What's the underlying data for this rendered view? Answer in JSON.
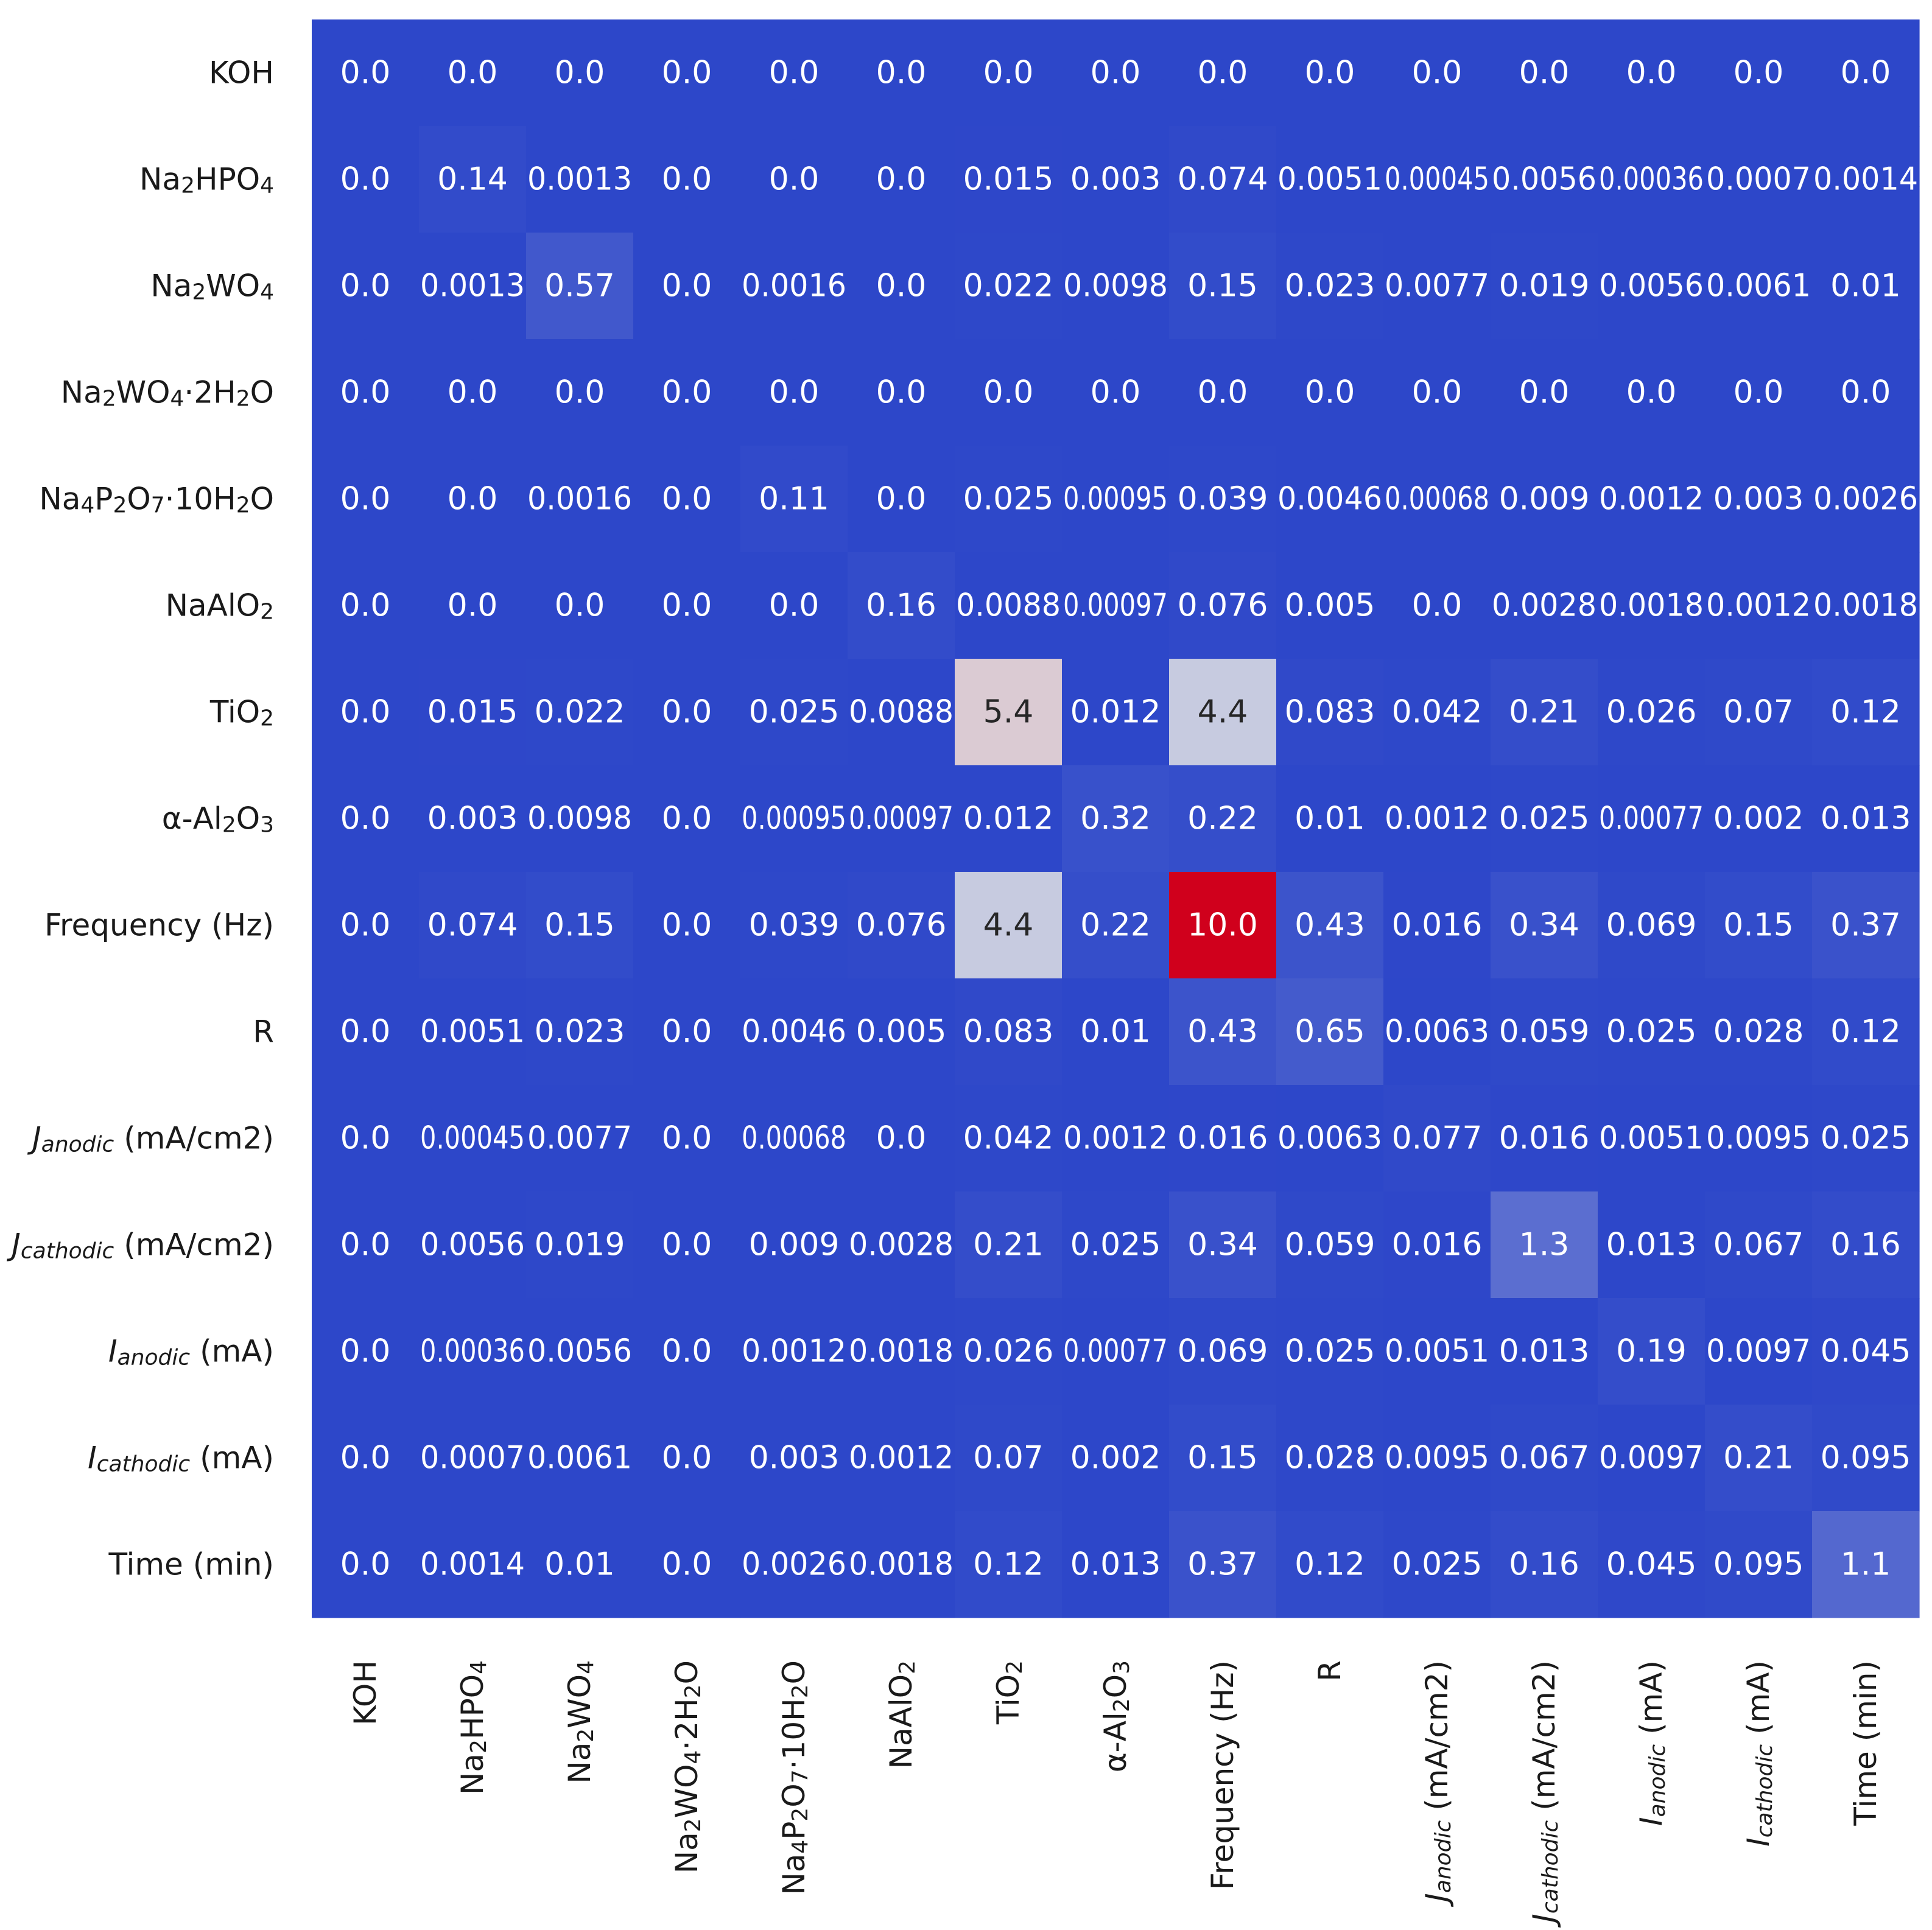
{
  "chart_data": {
    "type": "heatmap",
    "title": "",
    "xlabel": "",
    "ylabel": "",
    "labels": [
      "KOH",
      "Na₂HPO₄",
      "Na₂WO₄",
      "Na₂WO₄·2H₂O",
      "Na₄P₂O₇·10H₂O",
      "NaAlO₂",
      "TiO₂",
      "α-Al₂O₃",
      "Frequency (Hz)",
      "R",
      "Janodic (mA/cm2)",
      "Jcathodic (mA/cm2)",
      "Ianodic (mA)",
      "Icathodic (mA)",
      "Time (min)"
    ],
    "value_range": [
      0,
      10
    ],
    "colormap": {
      "low": "#2d47c9",
      "mid": "#dcdde3",
      "high": "#d0001c"
    },
    "matrix": [
      [
        "0.0",
        "0.0",
        "0.0",
        "0.0",
        "0.0",
        "0.0",
        "0.0",
        "0.0",
        "0.0",
        "0.0",
        "0.0",
        "0.0",
        "0.0",
        "0.0",
        "0.0"
      ],
      [
        "0.0",
        "0.14",
        "0.0013",
        "0.0",
        "0.0",
        "0.0",
        "0.015",
        "0.003",
        "0.074",
        "0.0051",
        "0.00045",
        "0.0056",
        "0.00036",
        "0.0007",
        "0.0014"
      ],
      [
        "0.0",
        "0.0013",
        "0.57",
        "0.0",
        "0.0016",
        "0.0",
        "0.022",
        "0.0098",
        "0.15",
        "0.023",
        "0.0077",
        "0.019",
        "0.0056",
        "0.0061",
        "0.01"
      ],
      [
        "0.0",
        "0.0",
        "0.0",
        "0.0",
        "0.0",
        "0.0",
        "0.0",
        "0.0",
        "0.0",
        "0.0",
        "0.0",
        "0.0",
        "0.0",
        "0.0",
        "0.0"
      ],
      [
        "0.0",
        "0.0",
        "0.0016",
        "0.0",
        "0.11",
        "0.0",
        "0.025",
        "0.00095",
        "0.039",
        "0.0046",
        "0.00068",
        "0.009",
        "0.0012",
        "0.003",
        "0.0026"
      ],
      [
        "0.0",
        "0.0",
        "0.0",
        "0.0",
        "0.0",
        "0.16",
        "0.0088",
        "0.00097",
        "0.076",
        "0.005",
        "0.0",
        "0.0028",
        "0.0018",
        "0.0012",
        "0.0018"
      ],
      [
        "0.0",
        "0.015",
        "0.022",
        "0.0",
        "0.025",
        "0.0088",
        "5.4",
        "0.012",
        "4.4",
        "0.083",
        "0.042",
        "0.21",
        "0.026",
        "0.07",
        "0.12"
      ],
      [
        "0.0",
        "0.003",
        "0.0098",
        "0.0",
        "0.00095",
        "0.00097",
        "0.012",
        "0.32",
        "0.22",
        "0.01",
        "0.0012",
        "0.025",
        "0.00077",
        "0.002",
        "0.013"
      ],
      [
        "0.0",
        "0.074",
        "0.15",
        "0.0",
        "0.039",
        "0.076",
        "4.4",
        "0.22",
        "10.0",
        "0.43",
        "0.016",
        "0.34",
        "0.069",
        "0.15",
        "0.37"
      ],
      [
        "0.0",
        "0.0051",
        "0.023",
        "0.0",
        "0.0046",
        "0.005",
        "0.083",
        "0.01",
        "0.43",
        "0.65",
        "0.0063",
        "0.059",
        "0.025",
        "0.028",
        "0.12"
      ],
      [
        "0.0",
        "0.00045",
        "0.0077",
        "0.0",
        "0.00068",
        "0.0",
        "0.042",
        "0.0012",
        "0.016",
        "0.0063",
        "0.077",
        "0.016",
        "0.0051",
        "0.0095",
        "0.025"
      ],
      [
        "0.0",
        "0.0056",
        "0.019",
        "0.0",
        "0.009",
        "0.0028",
        "0.21",
        "0.025",
        "0.34",
        "0.059",
        "0.016",
        "1.3",
        "0.013",
        "0.067",
        "0.16"
      ],
      [
        "0.0",
        "0.00036",
        "0.0056",
        "0.0",
        "0.0012",
        "0.0018",
        "0.026",
        "0.00077",
        "0.069",
        "0.025",
        "0.0051",
        "0.013",
        "0.19",
        "0.0097",
        "0.045"
      ],
      [
        "0.0",
        "0.0007",
        "0.0061",
        "0.0",
        "0.003",
        "0.0012",
        "0.07",
        "0.002",
        "0.15",
        "0.028",
        "0.0095",
        "0.067",
        "0.0097",
        "0.21",
        "0.095"
      ],
      [
        "0.0",
        "0.0014",
        "0.01",
        "0.0",
        "0.0026",
        "0.0018",
        "0.12",
        "0.013",
        "0.37",
        "0.12",
        "0.025",
        "0.16",
        "0.045",
        "0.095",
        "1.1"
      ]
    ]
  }
}
